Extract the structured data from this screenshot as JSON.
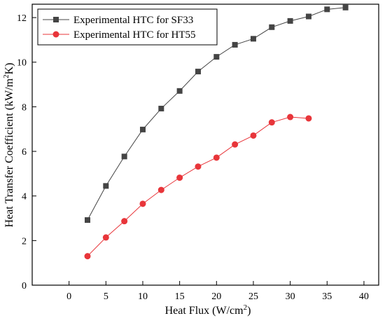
{
  "chart_data": {
    "type": "line",
    "title": "",
    "xlabel": "Heat Flux (W/cm",
    "xlabel_sup": "2",
    "xlabel_tail": ")",
    "ylabel": "Heat Transfer Coefficient (kW/m",
    "ylabel_sup": "2",
    "ylabel_tail": "K)",
    "xlim": [
      -5,
      42
    ],
    "ylim": [
      0,
      12.6
    ],
    "xticks": [
      0,
      5,
      10,
      15,
      20,
      25,
      30,
      35,
      40
    ],
    "yticks": [
      0,
      2,
      4,
      6,
      8,
      10,
      12
    ],
    "grid": false,
    "legend_position": "top-left",
    "series": [
      {
        "name": "Experimental HTC for SF33",
        "color": "#444444",
        "marker": "square",
        "x": [
          2.5,
          5,
          7.5,
          10,
          12.5,
          15,
          17.5,
          20,
          22.5,
          25,
          27.5,
          30,
          32.5,
          35,
          37.5
        ],
        "y": [
          2.92,
          4.45,
          5.77,
          6.98,
          7.92,
          8.71,
          9.58,
          10.24,
          10.78,
          11.05,
          11.57,
          11.85,
          12.05,
          12.37,
          12.45
        ]
      },
      {
        "name": "Experimental HTC for HT55",
        "color": "#e8353a",
        "marker": "circle",
        "x": [
          2.5,
          5,
          7.5,
          10,
          12.5,
          15,
          17.5,
          20,
          22.5,
          25,
          27.5,
          30,
          32.5
        ],
        "y": [
          1.3,
          2.14,
          2.87,
          3.65,
          4.27,
          4.82,
          5.32,
          5.72,
          6.31,
          6.71,
          7.3,
          7.54,
          7.48
        ]
      }
    ]
  }
}
